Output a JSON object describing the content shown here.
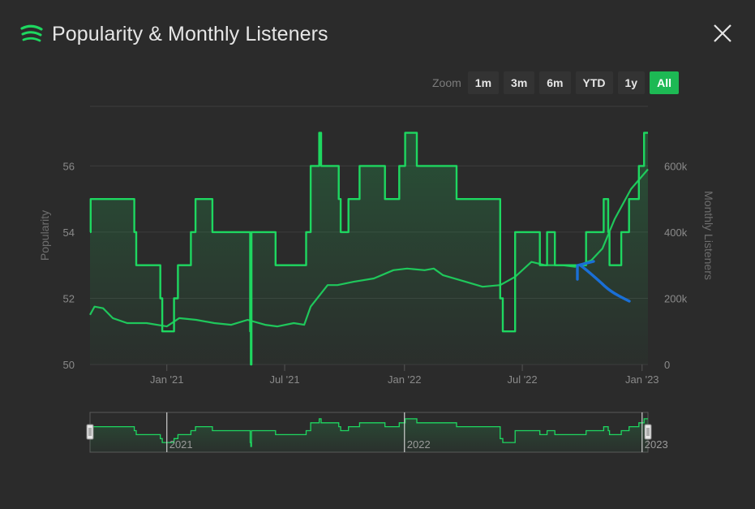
{
  "header": {
    "title": "Popularity & Monthly Listeners",
    "logo_icon": "spotify-bars-icon",
    "close_icon": "close-icon"
  },
  "zoom": {
    "label": "Zoom",
    "buttons": [
      "1m",
      "3m",
      "6m",
      "YTD",
      "1y",
      "All"
    ],
    "active": "All"
  },
  "colors": {
    "background": "#2b2b2b",
    "line": "#1ed760",
    "annotation_arrow": "#1a6fd6",
    "active_button": "#1db954"
  },
  "annotation": {
    "type": "hand-drawn arrow",
    "color": "blue",
    "points_to": "listeners line late 2022"
  },
  "chart_data": {
    "type": "line",
    "title": "Popularity & Monthly Listeners",
    "x_ticks": [
      "Jan '21",
      "Jul '21",
      "Jan '22",
      "Jul '22",
      "Jan '23"
    ],
    "x_range": [
      "2020-09-05",
      "2023-01-10"
    ],
    "y_left": {
      "label": "Popularity",
      "ticks": [
        "50",
        "52",
        "54",
        "56"
      ],
      "range": [
        50,
        57.8
      ]
    },
    "y_right": {
      "label": "Monthly Listeners",
      "ticks": [
        "0",
        "200k",
        "400k",
        "600k"
      ],
      "range": [
        0,
        780000
      ]
    },
    "grid": true,
    "navigator_labels": [
      "2021",
      "2022",
      "2023"
    ],
    "series": [
      {
        "name": "Popularity",
        "axis": "left",
        "color": "#1ed760",
        "step": true,
        "points": [
          [
            "2020-09-05",
            54
          ],
          [
            "2020-09-06",
            55
          ],
          [
            "2020-11-10",
            55
          ],
          [
            "2020-11-12",
            54
          ],
          [
            "2020-11-15",
            53
          ],
          [
            "2020-12-20",
            53
          ],
          [
            "2020-12-22",
            52
          ],
          [
            "2020-12-25",
            51
          ],
          [
            "2021-01-10",
            51
          ],
          [
            "2021-01-12",
            52
          ],
          [
            "2021-01-18",
            53
          ],
          [
            "2021-02-05",
            53
          ],
          [
            "2021-02-07",
            54
          ],
          [
            "2021-02-14",
            55
          ],
          [
            "2021-03-10",
            55
          ],
          [
            "2021-03-12",
            54
          ],
          [
            "2021-05-08",
            54
          ],
          [
            "2021-05-09",
            51
          ],
          [
            "2021-05-10",
            50
          ],
          [
            "2021-05-11",
            54
          ],
          [
            "2021-06-15",
            54
          ],
          [
            "2021-06-17",
            53
          ],
          [
            "2021-08-01",
            53
          ],
          [
            "2021-08-03",
            54
          ],
          [
            "2021-08-10",
            56
          ],
          [
            "2021-08-22",
            56
          ],
          [
            "2021-08-23",
            57
          ],
          [
            "2021-08-26",
            56
          ],
          [
            "2021-09-20",
            56
          ],
          [
            "2021-09-22",
            55
          ],
          [
            "2021-09-25",
            54
          ],
          [
            "2021-10-05",
            54
          ],
          [
            "2021-10-07",
            55
          ],
          [
            "2021-10-22",
            55
          ],
          [
            "2021-10-24",
            56
          ],
          [
            "2021-11-30",
            56
          ],
          [
            "2021-12-02",
            55
          ],
          [
            "2021-12-22",
            55
          ],
          [
            "2021-12-24",
            56
          ],
          [
            "2022-01-01",
            56
          ],
          [
            "2022-01-02",
            57
          ],
          [
            "2022-01-18",
            57
          ],
          [
            "2022-01-20",
            56
          ],
          [
            "2022-03-20",
            56
          ],
          [
            "2022-03-22",
            55
          ],
          [
            "2022-05-25",
            55
          ],
          [
            "2022-05-28",
            52
          ],
          [
            "2022-06-01",
            51
          ],
          [
            "2022-06-18",
            51
          ],
          [
            "2022-06-20",
            54
          ],
          [
            "2022-07-25",
            54
          ],
          [
            "2022-07-28",
            53
          ],
          [
            "2022-08-06",
            53
          ],
          [
            "2022-08-08",
            54
          ],
          [
            "2022-08-18",
            54
          ],
          [
            "2022-08-20",
            53
          ],
          [
            "2022-10-05",
            53
          ],
          [
            "2022-10-07",
            54
          ],
          [
            "2022-11-01",
            54
          ],
          [
            "2022-11-03",
            55
          ],
          [
            "2022-11-08",
            55
          ],
          [
            "2022-11-10",
            54
          ],
          [
            "2022-11-12",
            53
          ],
          [
            "2022-11-28",
            53
          ],
          [
            "2022-11-30",
            54
          ],
          [
            "2022-12-10",
            54
          ],
          [
            "2022-12-12",
            55
          ],
          [
            "2022-12-25",
            55
          ],
          [
            "2022-12-27",
            56
          ],
          [
            "2023-01-03",
            56
          ],
          [
            "2023-01-04",
            57
          ],
          [
            "2023-01-10",
            57
          ]
        ]
      },
      {
        "name": "Monthly Listeners",
        "axis": "right",
        "color": "#1ed760",
        "step": false,
        "points": [
          [
            "2020-09-05",
            150000
          ],
          [
            "2020-09-12",
            175000
          ],
          [
            "2020-09-25",
            170000
          ],
          [
            "2020-10-10",
            140000
          ],
          [
            "2020-11-01",
            125000
          ],
          [
            "2020-12-01",
            125000
          ],
          [
            "2021-01-01",
            115000
          ],
          [
            "2021-01-20",
            140000
          ],
          [
            "2021-02-15",
            135000
          ],
          [
            "2021-03-15",
            125000
          ],
          [
            "2021-04-10",
            120000
          ],
          [
            "2021-05-05",
            135000
          ],
          [
            "2021-06-01",
            120000
          ],
          [
            "2021-06-20",
            115000
          ],
          [
            "2021-07-15",
            125000
          ],
          [
            "2021-07-31",
            120000
          ],
          [
            "2021-08-10",
            175000
          ],
          [
            "2021-09-05",
            240000
          ],
          [
            "2021-09-20",
            240000
          ],
          [
            "2021-10-15",
            250000
          ],
          [
            "2021-11-15",
            260000
          ],
          [
            "2021-12-15",
            285000
          ],
          [
            "2022-01-05",
            290000
          ],
          [
            "2022-02-01",
            285000
          ],
          [
            "2022-02-15",
            290000
          ],
          [
            "2022-03-01",
            270000
          ],
          [
            "2022-04-05",
            250000
          ],
          [
            "2022-05-01",
            235000
          ],
          [
            "2022-05-28",
            240000
          ],
          [
            "2022-06-20",
            265000
          ],
          [
            "2022-07-15",
            310000
          ],
          [
            "2022-08-05",
            300000
          ],
          [
            "2022-09-01",
            300000
          ],
          [
            "2022-09-20",
            295000
          ],
          [
            "2022-10-15",
            315000
          ],
          [
            "2022-11-01",
            350000
          ],
          [
            "2022-11-20",
            440000
          ],
          [
            "2022-12-15",
            530000
          ],
          [
            "2023-01-10",
            590000
          ]
        ]
      }
    ]
  }
}
